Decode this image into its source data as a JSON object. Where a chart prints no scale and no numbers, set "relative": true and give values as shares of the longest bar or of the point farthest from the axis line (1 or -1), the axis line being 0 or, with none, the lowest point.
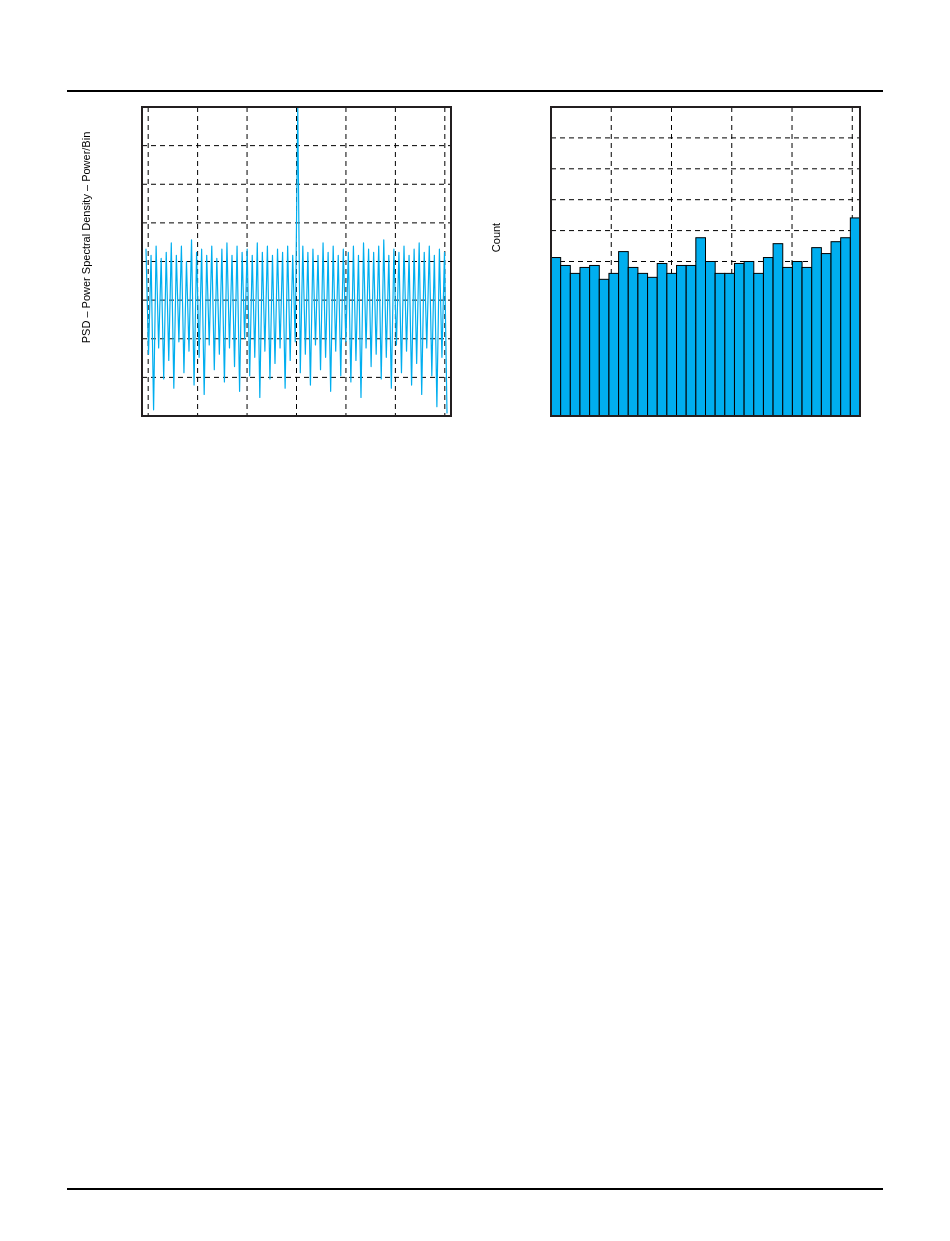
{
  "chart_data": [
    {
      "type": "line",
      "ylabel": "PSD – Power Spectral Density – Power/Bin",
      "relative": true,
      "grid": true,
      "categories": [
        null,
        null,
        null,
        null,
        null,
        null,
        null,
        null,
        null,
        null,
        null,
        null,
        null,
        null,
        null,
        null,
        null,
        null,
        null,
        null,
        null,
        null,
        null,
        null,
        null,
        null,
        null,
        null,
        null,
        null,
        null,
        null,
        null,
        null,
        null,
        null,
        null,
        null,
        null,
        null,
        null,
        null,
        null,
        null,
        null,
        null,
        null,
        null,
        null,
        null,
        null,
        null,
        null,
        null,
        null,
        null,
        null,
        null,
        null,
        null,
        null,
        null,
        null,
        null,
        null,
        null,
        null,
        null,
        null,
        null,
        null,
        null,
        null,
        null,
        null,
        null,
        null,
        null,
        null,
        null,
        null,
        null,
        null,
        null,
        null,
        null,
        null,
        null,
        null,
        null,
        null,
        null,
        null,
        null,
        null,
        null,
        null,
        null,
        null,
        null,
        null,
        null,
        null,
        null,
        null,
        null,
        null,
        null,
        null,
        null,
        null,
        null,
        null,
        null,
        null,
        null,
        null,
        null,
        null,
        null
      ],
      "series": [
        {
          "color": "#00aeef",
          "values": [
            0.54,
            0.2,
            0.52,
            0.02,
            0.55,
            0.22,
            0.51,
            0.12,
            0.53,
            0.18,
            0.56,
            0.09,
            0.52,
            0.24,
            0.55,
            0.14,
            0.5,
            0.21,
            0.57,
            0.1,
            0.53,
            0.19,
            0.54,
            0.07,
            0.52,
            0.23,
            0.55,
            0.15,
            0.51,
            0.2,
            0.54,
            0.11,
            0.56,
            0.22,
            0.52,
            0.16,
            0.55,
            0.08,
            0.53,
            0.25,
            0.54,
            0.13,
            0.52,
            0.19,
            0.56,
            0.06,
            0.53,
            0.21,
            0.55,
            0.12,
            0.52,
            0.17,
            0.54,
            0.22,
            0.53,
            0.09,
            0.55,
            0.18,
            0.52,
            0.24,
            1.0,
            0.14,
            0.55,
            0.2,
            0.53,
            0.1,
            0.54,
            0.23,
            0.52,
            0.15,
            0.56,
            0.19,
            0.53,
            0.08,
            0.55,
            0.21,
            0.52,
            0.13,
            0.54,
            0.24,
            0.53,
            0.11,
            0.55,
            0.18,
            0.52,
            0.06,
            0.56,
            0.22,
            0.54,
            0.16,
            0.53,
            0.2,
            0.55,
            0.12,
            0.57,
            0.19,
            0.52,
            0.09,
            0.54,
            0.23,
            0.53,
            0.14,
            0.55,
            0.21,
            0.52,
            0.1,
            0.54,
            0.17,
            0.56,
            0.07,
            0.53,
            0.22,
            0.55,
            0.13,
            0.52,
            0.03,
            0.54,
            0.19,
            0.53,
            0.01
          ]
        }
      ]
    },
    {
      "type": "bar",
      "ylabel": "Count",
      "relative": true,
      "grid": true,
      "categories": [
        null,
        null,
        null,
        null,
        null,
        null,
        null,
        null,
        null,
        null,
        null,
        null,
        null,
        null,
        null,
        null,
        null,
        null,
        null,
        null,
        null,
        null,
        null,
        null,
        null,
        null,
        null,
        null,
        null,
        null,
        null,
        null
      ],
      "series": [
        {
          "color": "#00aeef",
          "values": [
            0.8,
            0.76,
            0.72,
            0.75,
            0.76,
            0.69,
            0.72,
            0.83,
            0.75,
            0.72,
            0.7,
            0.77,
            0.72,
            0.76,
            0.76,
            0.9,
            0.78,
            0.72,
            0.72,
            0.77,
            0.78,
            0.72,
            0.8,
            0.87,
            0.75,
            0.78,
            0.75,
            0.85,
            0.82,
            0.88,
            0.9,
            1.0
          ]
        }
      ]
    }
  ]
}
